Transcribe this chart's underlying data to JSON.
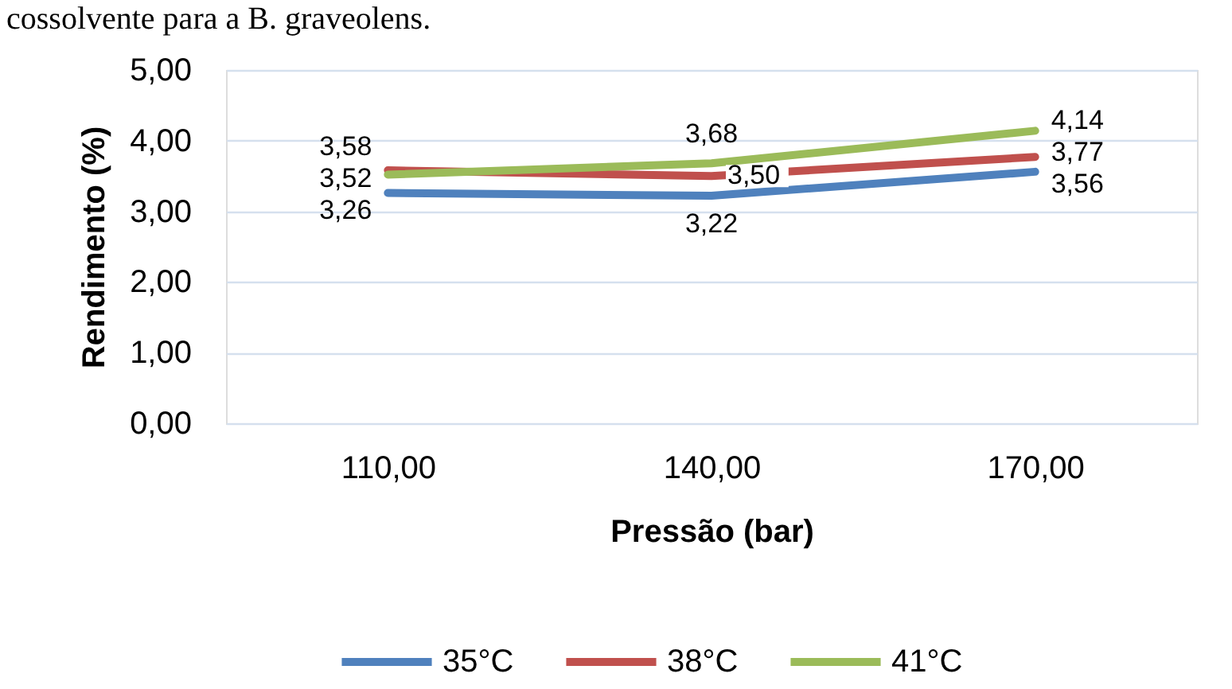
{
  "chart_data": {
    "type": "line",
    "annotations": [
      "cossolvente para a B. graveolens."
    ],
    "xlabel": "Pressão (bar)",
    "ylabel": "Rendimento (%)",
    "categories": [
      "110,00",
      "140,00",
      "170,00"
    ],
    "series": [
      {
        "name": "35°C",
        "color": "#4f81bd",
        "values": [
          3.26,
          3.22,
          3.56
        ],
        "value_labels": [
          "3,26",
          "3,22",
          "3,56"
        ]
      },
      {
        "name": "38°C",
        "color": "#c0504d",
        "values": [
          3.58,
          3.5,
          3.77
        ],
        "value_labels": [
          "3,58",
          "3,50",
          "3,77"
        ]
      },
      {
        "name": "41°C",
        "color": "#9bbb59",
        "values": [
          3.52,
          3.68,
          4.14
        ],
        "value_labels": [
          "3,52",
          "3,68",
          "4,14"
        ]
      }
    ],
    "ylim": [
      0,
      5
    ],
    "yticks": [
      {
        "value": 0,
        "label": "0,00"
      },
      {
        "value": 1,
        "label": "1,00"
      },
      {
        "value": 2,
        "label": "2,00"
      },
      {
        "value": 3,
        "label": "3,00"
      },
      {
        "value": 4,
        "label": "4,00"
      },
      {
        "value": 5,
        "label": "5,00"
      }
    ],
    "grid": "y",
    "legend": "bottom",
    "line_style": "solid"
  }
}
